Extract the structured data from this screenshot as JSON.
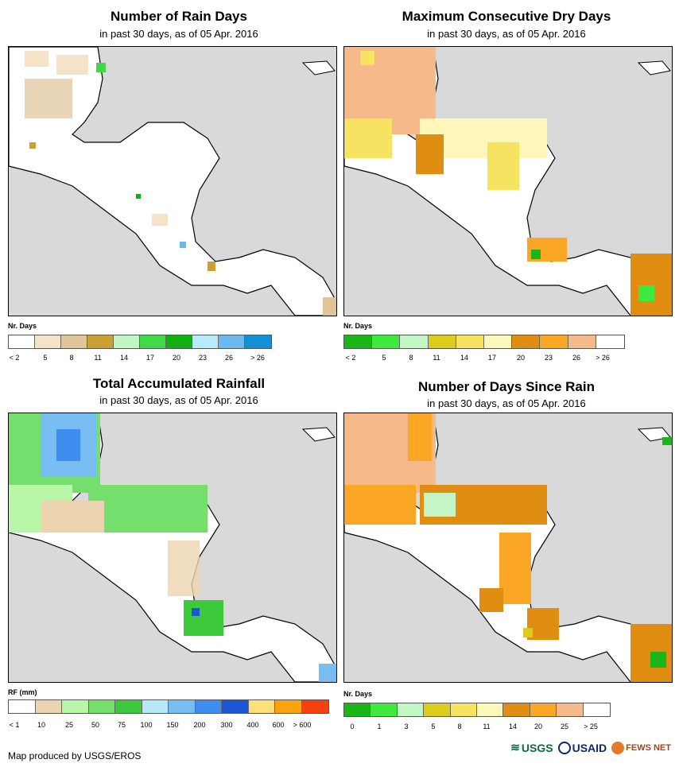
{
  "panels": [
    {
      "title": "Number of Rain Days",
      "subtitle": "in past 30 days, as of 05 Apr. 2016",
      "legend_title": "Nr. Days",
      "legend_colors": [
        "#ffffff",
        "#f5e3c8",
        "#e0c59a",
        "#c9a033",
        "#c2f5c2",
        "#3fd94a",
        "#0fb00f",
        "#b8eafb",
        "#6cb9f0",
        "#168fd6"
      ],
      "legend_ticks": [
        "< 2",
        "5",
        "8",
        "11",
        "14",
        "17",
        "20",
        "23",
        "26",
        "> 26"
      ],
      "legend_swatches": 10
    },
    {
      "title": "Maximum Consecutive Dry Days",
      "subtitle": "in past 30 days, as of 05 Apr. 2016",
      "legend_title": "Nr. Days",
      "legend_colors": [
        "#19b519",
        "#3dea3d",
        "#c4f5c4",
        "#dccd1c",
        "#f6e361",
        "#fdf7b9",
        "#e08e12",
        "#fba624",
        "#f6b98a",
        "#ffffff"
      ],
      "legend_ticks": [
        "< 2",
        "5",
        "8",
        "11",
        "14",
        "17",
        "20",
        "23",
        "26",
        "> 26"
      ],
      "legend_swatches": 10
    },
    {
      "title": "Total Accumulated Rainfall",
      "subtitle": "in past 30 days, as of 05 Apr. 2016",
      "legend_title": "RF (mm)",
      "legend_colors": [
        "#ffffff",
        "#ecd4b0",
        "#b8f7a7",
        "#74df6c",
        "#3cca3c",
        "#b6e8f8",
        "#78bdf2",
        "#3e8ef0",
        "#1c56d8",
        "#fde07a",
        "#fba30c",
        "#f5400f"
      ],
      "legend_ticks": [
        "< 1",
        "10",
        "25",
        "50",
        "75",
        "100",
        "150",
        "200",
        "300",
        "400",
        "600",
        "> 600"
      ],
      "legend_swatches": 12
    },
    {
      "title": "Number of Days Since Rain",
      "subtitle": "in past 30 days, as of 05 Apr. 2016",
      "legend_title": "Nr. Days",
      "legend_colors": [
        "#19b519",
        "#3dea3d",
        "#c4f5c4",
        "#dccd1c",
        "#f6e361",
        "#fdf7b9",
        "#e08e12",
        "#fba624",
        "#f6b98a",
        "#ffffff"
      ],
      "legend_ticks": [
        "0",
        "1",
        "3",
        "5",
        "8",
        "11",
        "14",
        "20",
        "25",
        "> 25"
      ],
      "legend_swatches": 10
    }
  ],
  "footer": "Map produced by USGS/EROS",
  "logos": [
    "USGS",
    "USAID",
    "FEWS NET"
  ]
}
